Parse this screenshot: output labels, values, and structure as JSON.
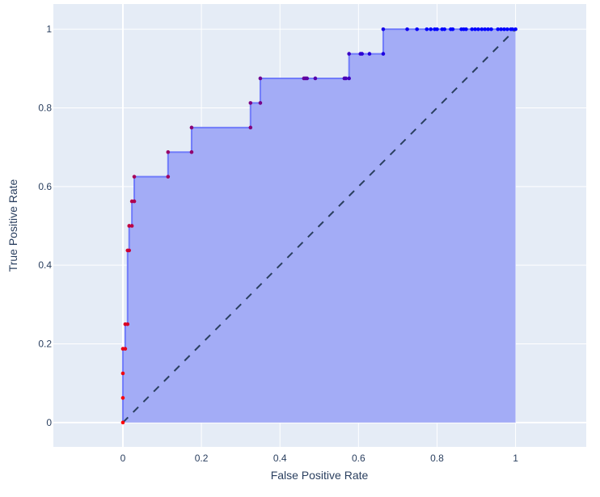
{
  "chart_data": {
    "type": "area",
    "title": "",
    "xlabel": "False Positive Rate",
    "ylabel": "True Positive Rate",
    "xlim": [
      -0.177,
      1.18
    ],
    "ylim": [
      -0.062,
      1.064
    ],
    "xticks": [
      0,
      0.2,
      0.4,
      0.6,
      0.8,
      1
    ],
    "xtick_labels": [
      "0",
      "0.2",
      "0.4",
      "0.6",
      "0.8",
      "1"
    ],
    "yticks": [
      0,
      0.2,
      0.4,
      0.6,
      0.8,
      1
    ],
    "ytick_labels": [
      "0",
      "0.2",
      "0.4",
      "0.6",
      "0.8",
      "1"
    ],
    "grid": true,
    "colors": {
      "background": "#e5ecf6",
      "line": "#636efa",
      "fill": "#a3acf6",
      "diagonal": "#2a3f5f",
      "marker_start": "#ff0000",
      "marker_end": "#0000ff"
    },
    "series": [
      {
        "x": [
          0,
          0,
          0,
          0,
          0.006,
          0.006,
          0.012,
          0.012,
          0.016,
          0.016,
          0.023,
          0.023,
          0.029,
          0.029,
          0.115,
          0.115,
          0.175,
          0.175,
          0.325,
          0.325,
          0.35,
          0.35,
          0.461,
          0.465,
          0.469,
          0.49,
          0.564,
          0.568,
          0.576,
          0.576,
          0.605,
          0.609,
          0.628,
          0.663,
          0.663,
          0.724,
          0.749,
          0.774,
          0.784,
          0.794,
          0.8,
          0.813,
          0.819,
          0.835,
          0.84,
          0.862,
          0.868,
          0.874,
          0.889,
          0.897,
          0.905,
          0.914,
          0.922,
          0.93,
          0.938,
          0.955,
          0.963,
          0.971,
          0.979,
          0.988,
          0.992,
          1
        ],
        "y": [
          0,
          0.0625,
          0.125,
          0.1875,
          0.1875,
          0.25,
          0.25,
          0.4375,
          0.4375,
          0.5,
          0.5,
          0.5625,
          0.5625,
          0.625,
          0.625,
          0.6875,
          0.6875,
          0.75,
          0.75,
          0.8125,
          0.8125,
          0.875,
          0.875,
          0.875,
          0.875,
          0.875,
          0.875,
          0.875,
          0.875,
          0.9375,
          0.9375,
          0.9375,
          0.9375,
          0.9375,
          1,
          1,
          1,
          1,
          1,
          1,
          1,
          1,
          1,
          1,
          1,
          1,
          1,
          1,
          1,
          1,
          1,
          1,
          1,
          1,
          1,
          1,
          1,
          1,
          1,
          1,
          1,
          1
        ]
      },
      {
        "name": "",
        "x": [
          0,
          1
        ],
        "y": [
          0,
          1
        ],
        "style": "dashed"
      }
    ]
  }
}
